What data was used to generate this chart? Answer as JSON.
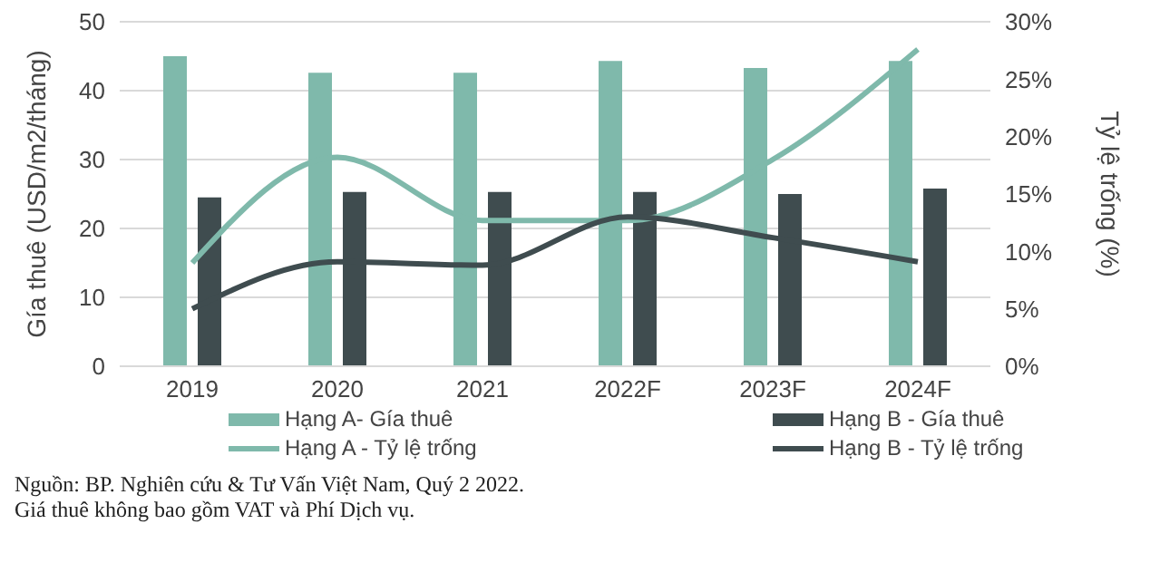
{
  "chart_data": {
    "type": "bar",
    "categories": [
      "2019",
      "2020",
      "2021",
      "2022F",
      "2023F",
      "2024F"
    ],
    "ylabel": "Gía thuê (USD/m2/tháng)",
    "y2label": "Tỷ lệ trống (%)",
    "ylim": [
      0,
      50
    ],
    "yticks": [
      0,
      10,
      20,
      30,
      40,
      50
    ],
    "y2lim": [
      0,
      30
    ],
    "y2ticks": [
      {
        "value": 0,
        "label": "0%"
      },
      {
        "value": 5,
        "label": "5%"
      },
      {
        "value": 10,
        "label": "10%"
      },
      {
        "value": 15,
        "label": "15%"
      },
      {
        "value": 20,
        "label": "20%"
      },
      {
        "value": 25,
        "label": "25%"
      },
      {
        "value": 30,
        "label": "30%"
      }
    ],
    "grid": "y",
    "legend": "bottom",
    "marker": "none",
    "series": [
      {
        "name": "Hạng A- Gía thuê",
        "color": "#7fb9ab",
        "values": [
          45.0,
          42.6,
          42.6,
          44.3,
          43.3,
          44.3
        ]
      },
      {
        "name": "Hạng B - Gía thuê",
        "color": "#3f4c4f",
        "values": [
          24.5,
          25.3,
          25.3,
          25.3,
          25.0,
          25.8
        ]
      },
      {
        "name": "Hạng A - Tỷ lệ trống",
        "type": "line",
        "axis": "y2",
        "color": "#7fb9ab",
        "values": [
          9.0,
          18.2,
          12.7,
          12.7,
          18.0,
          27.6
        ]
      },
      {
        "name": "Hạng B - Tỷ lệ trống",
        "type": "line",
        "axis": "y2",
        "color": "#3f4c4f",
        "values": [
          5.0,
          9.1,
          8.8,
          13.0,
          11.2,
          9.1
        ]
      }
    ],
    "annotations": [
      "Nguồn: BP. Nghiên cứu & Tư Vấn Việt Nam, Quý 2 2022.",
      "Giá thuê không bao gồm VAT và Phí Dịch vụ."
    ]
  }
}
